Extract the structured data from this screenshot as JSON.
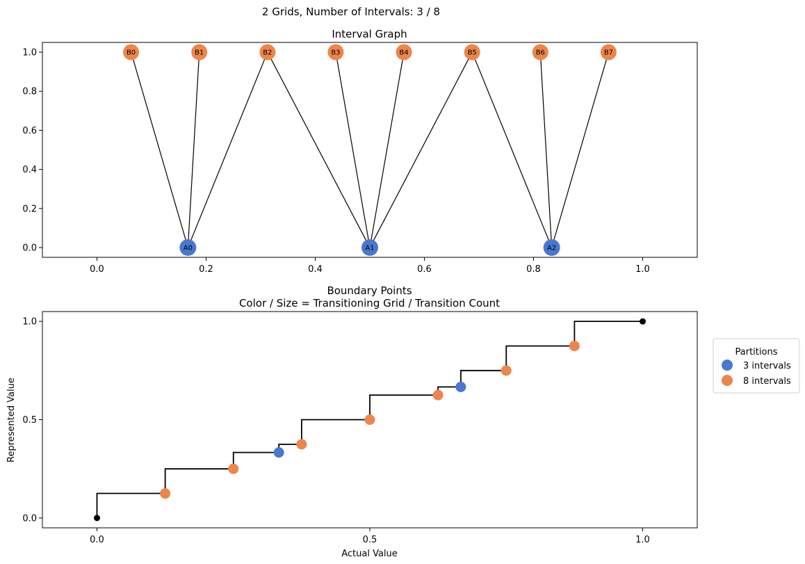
{
  "suptitle": "2 Grids, Number of Intervals: 3 / 8",
  "colors": {
    "grid_a": "#4878d0",
    "grid_b": "#ee854a",
    "edge": "#000000",
    "step": "#000000"
  },
  "chart_data": [
    {
      "type": "scatter",
      "title": "Interval Graph",
      "xlabel": "",
      "ylabel": "",
      "xlim": [
        -0.1,
        1.1
      ],
      "ylim": [
        -0.05,
        1.05
      ],
      "xticks": [
        "0.0",
        "0.2",
        "0.4",
        "0.6",
        "0.8",
        "1.0"
      ],
      "xtick_values": [
        0.0,
        0.2,
        0.4,
        0.6,
        0.8,
        1.0
      ],
      "yticks": [
        "0.0",
        "0.2",
        "0.4",
        "0.6",
        "0.8",
        "1.0"
      ],
      "ytick_values": [
        0.0,
        0.2,
        0.4,
        0.6,
        0.8,
        1.0
      ],
      "nodes": [
        {
          "label": "A0",
          "x": 0.1667,
          "y": 0,
          "grid": "a"
        },
        {
          "label": "A1",
          "x": 0.5,
          "y": 0,
          "grid": "a"
        },
        {
          "label": "A2",
          "x": 0.8333,
          "y": 0,
          "grid": "a"
        },
        {
          "label": "B0",
          "x": 0.0625,
          "y": 1,
          "grid": "b"
        },
        {
          "label": "B1",
          "x": 0.1875,
          "y": 1,
          "grid": "b"
        },
        {
          "label": "B2",
          "x": 0.3125,
          "y": 1,
          "grid": "b"
        },
        {
          "label": "B3",
          "x": 0.4375,
          "y": 1,
          "grid": "b"
        },
        {
          "label": "B4",
          "x": 0.5625,
          "y": 1,
          "grid": "b"
        },
        {
          "label": "B5",
          "x": 0.6875,
          "y": 1,
          "grid": "b"
        },
        {
          "label": "B6",
          "x": 0.8125,
          "y": 1,
          "grid": "b"
        },
        {
          "label": "B7",
          "x": 0.9375,
          "y": 1,
          "grid": "b"
        }
      ],
      "edges": [
        [
          "A0",
          "B0"
        ],
        [
          "A0",
          "B1"
        ],
        [
          "A0",
          "B2"
        ],
        [
          "A1",
          "B2"
        ],
        [
          "A1",
          "B3"
        ],
        [
          "A1",
          "B4"
        ],
        [
          "A1",
          "B5"
        ],
        [
          "A2",
          "B5"
        ],
        [
          "A2",
          "B6"
        ],
        [
          "A2",
          "B7"
        ]
      ]
    },
    {
      "type": "line",
      "title": "Boundary Points",
      "subtitle": "Color / Size = Transitioning Grid / Transition Count",
      "xlabel": "Actual Value",
      "ylabel": "Represented Value",
      "xlim": [
        -0.1,
        1.1
      ],
      "ylim": [
        -0.05,
        1.05
      ],
      "xticks": [
        "0.0",
        "0.5",
        "1.0"
      ],
      "xtick_values": [
        0.0,
        0.5,
        1.0
      ],
      "yticks": [
        "0.0",
        "0.5",
        "1.0"
      ],
      "ytick_values": [
        0.0,
        0.5,
        1.0
      ],
      "step_points": [
        [
          0.0,
          0.0
        ],
        [
          0.0,
          0.125
        ],
        [
          0.125,
          0.125
        ],
        [
          0.125,
          0.25
        ],
        [
          0.25,
          0.25
        ],
        [
          0.25,
          0.3333
        ],
        [
          0.3333,
          0.3333
        ],
        [
          0.3333,
          0.375
        ],
        [
          0.375,
          0.375
        ],
        [
          0.375,
          0.5
        ],
        [
          0.5,
          0.5
        ],
        [
          0.5,
          0.625
        ],
        [
          0.625,
          0.625
        ],
        [
          0.625,
          0.6667
        ],
        [
          0.6667,
          0.6667
        ],
        [
          0.6667,
          0.75
        ],
        [
          0.75,
          0.75
        ],
        [
          0.75,
          0.875
        ],
        [
          0.875,
          0.875
        ],
        [
          0.875,
          1.0
        ],
        [
          1.0,
          1.0
        ]
      ],
      "endpoints": [
        {
          "x": 0.0,
          "y": 0.0
        },
        {
          "x": 1.0,
          "y": 1.0
        }
      ],
      "boundary_points": [
        {
          "x": 0.125,
          "y": 0.125,
          "grid": "b"
        },
        {
          "x": 0.25,
          "y": 0.25,
          "grid": "b"
        },
        {
          "x": 0.3333,
          "y": 0.3333,
          "grid": "a"
        },
        {
          "x": 0.375,
          "y": 0.375,
          "grid": "b"
        },
        {
          "x": 0.5,
          "y": 0.5,
          "grid": "b"
        },
        {
          "x": 0.625,
          "y": 0.625,
          "grid": "b"
        },
        {
          "x": 0.6667,
          "y": 0.6667,
          "grid": "a"
        },
        {
          "x": 0.75,
          "y": 0.75,
          "grid": "b"
        },
        {
          "x": 0.875,
          "y": 0.875,
          "grid": "b"
        }
      ],
      "legend": {
        "title": "Partitions",
        "placement": "outside-right",
        "entries": [
          {
            "label": "3 intervals",
            "grid": "a"
          },
          {
            "label": "8 intervals",
            "grid": "b"
          }
        ]
      }
    }
  ]
}
